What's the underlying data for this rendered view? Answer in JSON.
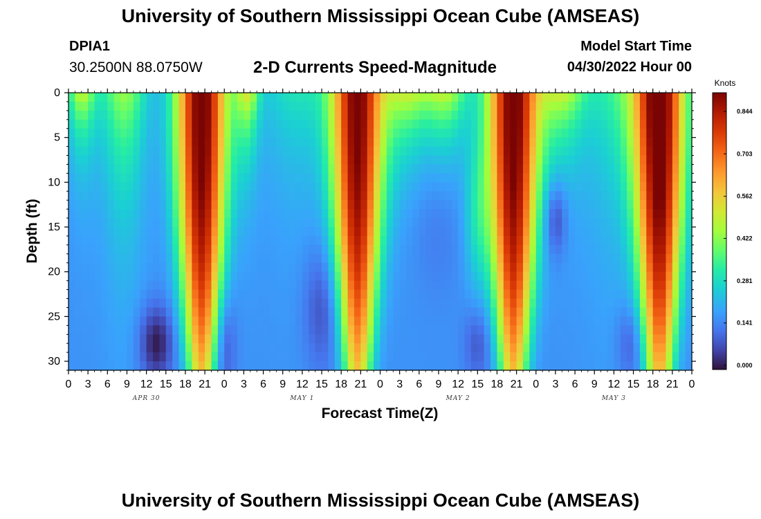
{
  "page_title": "University of Southern Mississippi Ocean Cube (AMSEAS)",
  "bottom_title": "University of Southern Mississippi Ocean Cube (AMSEAS)",
  "station": {
    "id": "DPIA1",
    "coords": "30.2500N  88.0750W"
  },
  "model_start": {
    "label": "Model Start Time",
    "value": "04/30/2022 Hour 00"
  },
  "chart_data": {
    "type": "heatmap",
    "title": "2-D Currents Speed-Magnitude",
    "xlabel": "Forecast Time(Z)",
    "ylabel": "Depth (ft)",
    "x_range_hours": [
      0,
      96
    ],
    "y_range_ft": [
      0,
      31
    ],
    "y_ticks": [
      0,
      5,
      10,
      15,
      20,
      25,
      30
    ],
    "x_tick_labels": [
      "0",
      "3",
      "6",
      "9",
      "12",
      "15",
      "18",
      "21",
      "0",
      "3",
      "6",
      "9",
      "12",
      "15",
      "18",
      "21",
      "0",
      "3",
      "6",
      "9",
      "12",
      "15",
      "18",
      "21",
      "0",
      "3",
      "6",
      "9",
      "12",
      "15",
      "18",
      "21",
      "0"
    ],
    "day_labels": [
      {
        "label": "APR 30",
        "hour": 12
      },
      {
        "label": "MAY 1",
        "hour": 36
      },
      {
        "label": "MAY 2",
        "hour": 60
      },
      {
        "label": "MAY 3",
        "hour": 84
      }
    ],
    "colorbar": {
      "unit": "Knots",
      "ticks": [
        "0.844",
        "0.703",
        "0.562",
        "0.422",
        "0.281",
        "0.141",
        "0.000"
      ],
      "range": [
        0.0,
        0.92
      ]
    },
    "peaks": [
      {
        "hour": 20.5,
        "speed": 0.9,
        "label": "Apr 30 ~18-22Z"
      },
      {
        "hour": 44.5,
        "speed": 0.88,
        "label": "May 1 ~18-22Z"
      },
      {
        "hour": 68.5,
        "speed": 0.9,
        "label": "May 2 ~18-22Z"
      },
      {
        "hour": 91.0,
        "speed": 0.92,
        "label": "May 3 ~18-24Z"
      }
    ]
  }
}
